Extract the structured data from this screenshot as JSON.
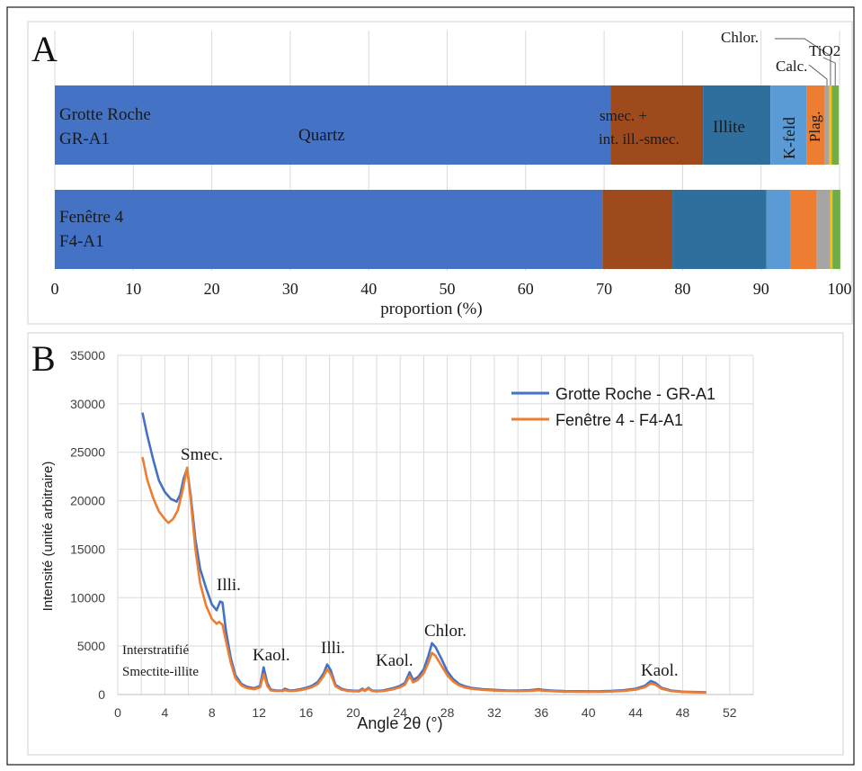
{
  "chart_data": [
    {
      "type": "bar",
      "orientation": "horizontal",
      "stacked": true,
      "panel_label": "A",
      "xlabel": "proportion (%)",
      "xlim": [
        0,
        100
      ],
      "xticks": [
        "0",
        "10",
        "20",
        "30",
        "40",
        "50",
        "60",
        "70",
        "80",
        "90",
        "100"
      ],
      "grid": true,
      "categories": [
        {
          "line1": "Grotte Roche",
          "line2": "GR-A1"
        },
        {
          "line1": "Fenêtre 4",
          "line2": "F4-A1"
        }
      ],
      "series": [
        {
          "name": "Quartz",
          "color": "#4472c4",
          "values": [
            70.8,
            69.8
          ]
        },
        {
          "name": "smec. + int. ill.-smec.",
          "color": "#9e4a1c",
          "values": [
            11.8,
            8.9
          ]
        },
        {
          "name": "Illite",
          "color": "#2e6f9e",
          "values": [
            8.6,
            12.0
          ]
        },
        {
          "name": "K-feld",
          "color": "#5b9bd5",
          "values": [
            4.6,
            3.1
          ]
        },
        {
          "name": "Plag.",
          "color": "#ed7d31",
          "values": [
            2.3,
            3.3
          ]
        },
        {
          "name": "Calc.",
          "color": "#a5a5a5",
          "values": [
            0.6,
            1.7
          ]
        },
        {
          "name": "Chlor.",
          "color": "#ffc000",
          "values": [
            0.3,
            0.3
          ]
        },
        {
          "name": "TiO2",
          "color": "#70ad47",
          "values": [
            0.9,
            1.0
          ]
        }
      ],
      "segment_labels": {
        "quartz": "Quartz",
        "smec_1": "smec. +",
        "smec_2": "int. ill.-smec.",
        "illite": "Illite",
        "kfeld": "K-feld",
        "plag": "Plag.",
        "calc": "Calc.",
        "chlor": "Chlor.",
        "tio2": "TiO2"
      }
    },
    {
      "type": "line",
      "panel_label": "B",
      "xlabel": "Angle 2θ (°)",
      "ylabel": "Intensité (unité arbitraire)",
      "xlim": [
        0,
        54
      ],
      "ylim": [
        0,
        35000
      ],
      "xticks": [
        0,
        4,
        8,
        12,
        16,
        20,
        24,
        28,
        32,
        36,
        40,
        44,
        48,
        52
      ],
      "yticks": [
        0,
        5000,
        10000,
        15000,
        20000,
        25000,
        30000,
        35000
      ],
      "grid": true,
      "legend_position": "top-right",
      "series": [
        {
          "name": "Grotte Roche - GR-A1",
          "color": "#4472c4",
          "points": [
            [
              2.1,
              29100
            ],
            [
              2.5,
              26800
            ],
            [
              3,
              24300
            ],
            [
              3.5,
              22100
            ],
            [
              4,
              20900
            ],
            [
              4.5,
              20200
            ],
            [
              5,
              19900
            ],
            [
              5.3,
              20600
            ],
            [
              5.6,
              22300
            ],
            [
              5.9,
              23300
            ],
            [
              6.2,
              20500
            ],
            [
              6.6,
              16000
            ],
            [
              7,
              13000
            ],
            [
              7.5,
              11000
            ],
            [
              8,
              9300
            ],
            [
              8.4,
              8700
            ],
            [
              8.7,
              9600
            ],
            [
              8.9,
              9500
            ],
            [
              9.2,
              6500
            ],
            [
              9.6,
              3800
            ],
            [
              10,
              2000
            ],
            [
              10.5,
              1100
            ],
            [
              11,
              800
            ],
            [
              11.6,
              650
            ],
            [
              12.1,
              900
            ],
            [
              12.4,
              2800
            ],
            [
              12.7,
              1200
            ],
            [
              13,
              500
            ],
            [
              13.5,
              420
            ],
            [
              14,
              430
            ],
            [
              14.2,
              600
            ],
            [
              14.6,
              420
            ],
            [
              15,
              450
            ],
            [
              15.5,
              550
            ],
            [
              16,
              700
            ],
            [
              16.5,
              900
            ],
            [
              17,
              1300
            ],
            [
              17.5,
              2200
            ],
            [
              17.8,
              3100
            ],
            [
              18.1,
              2500
            ],
            [
              18.5,
              1000
            ],
            [
              19,
              600
            ],
            [
              19.5,
              450
            ],
            [
              20,
              400
            ],
            [
              20.5,
              380
            ],
            [
              20.8,
              600
            ],
            [
              21,
              420
            ],
            [
              21.3,
              700
            ],
            [
              21.6,
              420
            ],
            [
              22,
              380
            ],
            [
              22.5,
              420
            ],
            [
              23,
              550
            ],
            [
              23.5,
              700
            ],
            [
              24,
              900
            ],
            [
              24.4,
              1200
            ],
            [
              24.8,
              2300
            ],
            [
              25.1,
              1500
            ],
            [
              25.5,
              1800
            ],
            [
              26,
              2600
            ],
            [
              26.4,
              4000
            ],
            [
              26.7,
              5300
            ],
            [
              27,
              4900
            ],
            [
              27.5,
              3700
            ],
            [
              28,
              2400
            ],
            [
              28.5,
              1600
            ],
            [
              29,
              1100
            ],
            [
              29.5,
              850
            ],
            [
              30,
              700
            ],
            [
              31,
              550
            ],
            [
              32,
              480
            ],
            [
              33,
              430
            ],
            [
              34,
              420
            ],
            [
              35,
              450
            ],
            [
              35.8,
              550
            ],
            [
              36.1,
              480
            ],
            [
              37,
              400
            ],
            [
              38,
              350
            ],
            [
              39,
              340
            ],
            [
              40,
              330
            ],
            [
              41,
              340
            ],
            [
              42,
              380
            ],
            [
              43,
              450
            ],
            [
              44,
              600
            ],
            [
              44.8,
              900
            ],
            [
              45.3,
              1400
            ],
            [
              45.7,
              1200
            ],
            [
              46.2,
              700
            ],
            [
              47,
              420
            ],
            [
              48,
              300
            ],
            [
              49,
              260
            ],
            [
              50,
              240
            ]
          ]
        },
        {
          "name": "Fenêtre 4 - F4-A1",
          "color": "#ed7d31",
          "points": [
            [
              2.1,
              24500
            ],
            [
              2.5,
              22200
            ],
            [
              3,
              20300
            ],
            [
              3.5,
              18900
            ],
            [
              4,
              18100
            ],
            [
              4.3,
              17700
            ],
            [
              4.7,
              18100
            ],
            [
              5.1,
              19000
            ],
            [
              5.5,
              21000
            ],
            [
              5.9,
              23400
            ],
            [
              6.2,
              20100
            ],
            [
              6.6,
              15000
            ],
            [
              7,
              11500
            ],
            [
              7.5,
              9200
            ],
            [
              8,
              7800
            ],
            [
              8.4,
              7300
            ],
            [
              8.6,
              7500
            ],
            [
              8.9,
              7200
            ],
            [
              9.2,
              5500
            ],
            [
              9.6,
              3300
            ],
            [
              10,
              1700
            ],
            [
              10.5,
              950
            ],
            [
              11,
              650
            ],
            [
              11.6,
              550
            ],
            [
              12.1,
              750
            ],
            [
              12.4,
              2100
            ],
            [
              12.7,
              900
            ],
            [
              13,
              420
            ],
            [
              13.5,
              360
            ],
            [
              14,
              370
            ],
            [
              14.2,
              450
            ],
            [
              14.6,
              360
            ],
            [
              15,
              380
            ],
            [
              15.5,
              450
            ],
            [
              16,
              580
            ],
            [
              16.5,
              750
            ],
            [
              17,
              1100
            ],
            [
              17.5,
              1900
            ],
            [
              17.8,
              2600
            ],
            [
              18.1,
              2100
            ],
            [
              18.5,
              850
            ],
            [
              19,
              500
            ],
            [
              19.5,
              380
            ],
            [
              20,
              340
            ],
            [
              20.5,
              320
            ],
            [
              20.8,
              500
            ],
            [
              21,
              360
            ],
            [
              21.3,
              600
            ],
            [
              21.6,
              360
            ],
            [
              22,
              320
            ],
            [
              22.5,
              350
            ],
            [
              23,
              450
            ],
            [
              23.5,
              580
            ],
            [
              24,
              750
            ],
            [
              24.4,
              1000
            ],
            [
              24.8,
              1900
            ],
            [
              25.1,
              1250
            ],
            [
              25.5,
              1500
            ],
            [
              26,
              2200
            ],
            [
              26.4,
              3300
            ],
            [
              26.7,
              4300
            ],
            [
              27,
              4000
            ],
            [
              27.5,
              3000
            ],
            [
              28,
              2000
            ],
            [
              28.5,
              1350
            ],
            [
              29,
              950
            ],
            [
              29.5,
              720
            ],
            [
              30,
              600
            ],
            [
              31,
              480
            ],
            [
              32,
              410
            ],
            [
              33,
              370
            ],
            [
              34,
              360
            ],
            [
              35,
              380
            ],
            [
              35.8,
              450
            ],
            [
              36.1,
              400
            ],
            [
              37,
              340
            ],
            [
              38,
              300
            ],
            [
              39,
              290
            ],
            [
              40,
              280
            ],
            [
              41,
              290
            ],
            [
              42,
              320
            ],
            [
              43,
              380
            ],
            [
              44,
              500
            ],
            [
              44.8,
              750
            ],
            [
              45.3,
              1150
            ],
            [
              45.7,
              1000
            ],
            [
              46.2,
              600
            ],
            [
              47,
              360
            ],
            [
              48,
              260
            ],
            [
              49,
              220
            ],
            [
              50,
              200
            ]
          ]
        }
      ],
      "annotations": [
        {
          "text": "Smec."
        },
        {
          "text": "Illi."
        },
        {
          "text": "Interstratifié"
        },
        {
          "text": "Smectite-illite"
        },
        {
          "text": "Kaol."
        },
        {
          "text": "Illi."
        },
        {
          "text": "Kaol."
        },
        {
          "text": "Chlor."
        },
        {
          "text": "Kaol."
        }
      ]
    }
  ]
}
